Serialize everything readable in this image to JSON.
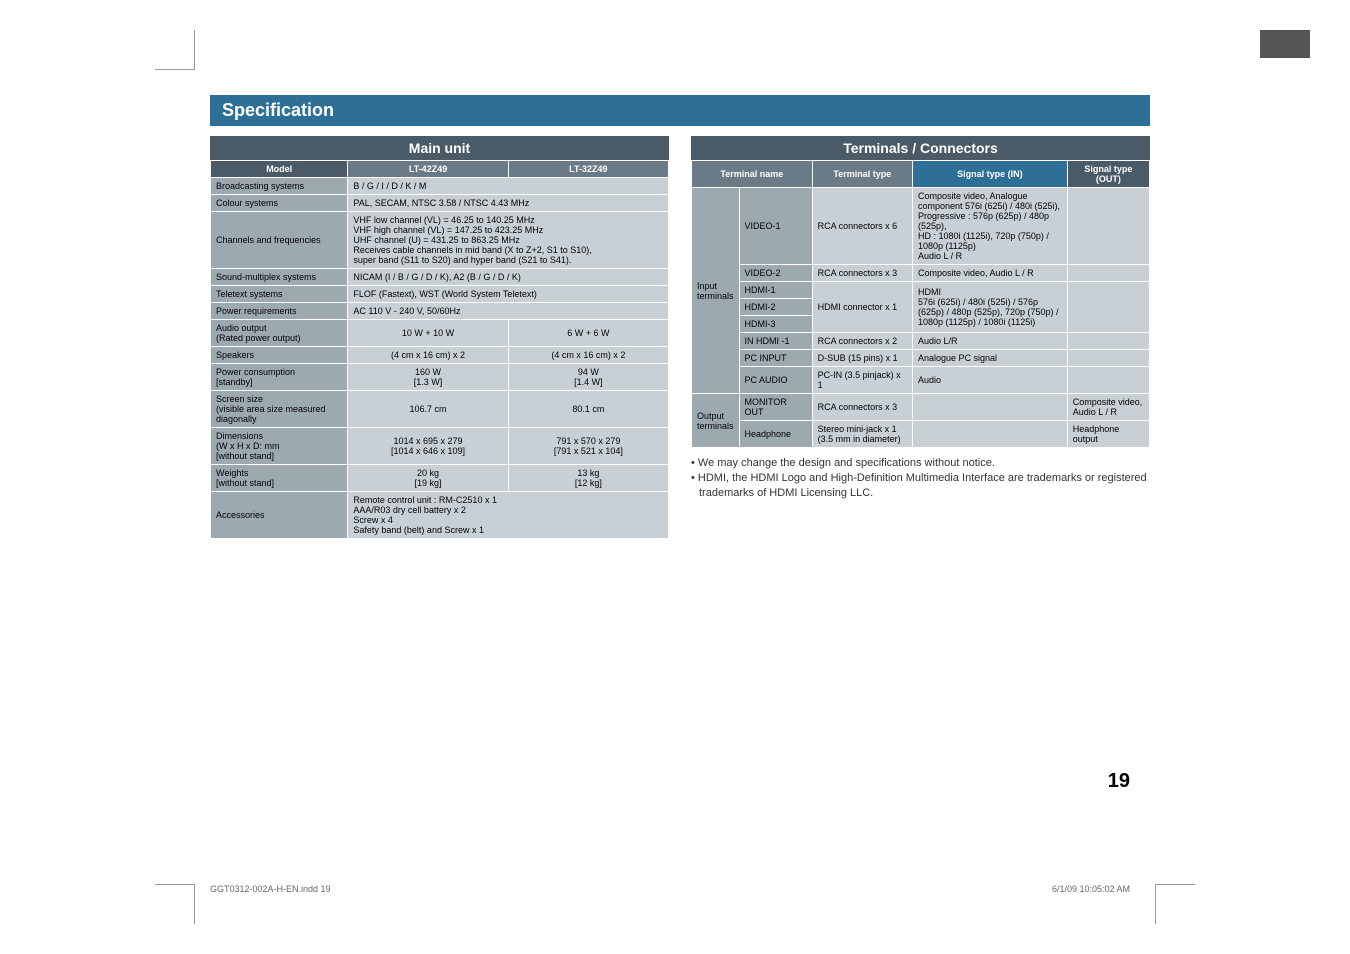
{
  "spec_header": "Specification",
  "main_unit": {
    "title": "Main unit",
    "headers": {
      "model": "Model",
      "m1": "LT-42Z49",
      "m2": "LT-32Z49"
    },
    "rows": [
      {
        "label": "Broadcasting systems",
        "span": "B / G / I / D / K / M"
      },
      {
        "label": "Colour systems",
        "span": "PAL, SECAM, NTSC 3.58 / NTSC 4.43 MHz"
      },
      {
        "label": "Channels and frequencies",
        "span": "VHF low channel (VL) = 46.25 to 140.25 MHz\nVHF high channel (VL) = 147.25 to 423.25 MHz\nUHF channel (U) = 431.25 to 863.25 MHz\nReceives cable channels in mid band (X to Z+2, S1 to S10),\nsuper band (S11 to S20) and hyper band (S21 to S41)."
      },
      {
        "label": "Sound-multiplex systems",
        "span": "NICAM (I / B / G / D / K), A2 (B / G / D / K)"
      },
      {
        "label": "Teletext systems",
        "span": "FLOF (Fastext), WST (World System Teletext)"
      },
      {
        "label": "Power requirements",
        "span": "AC 110 V - 240 V, 50/60Hz"
      },
      {
        "label": "Audio output\n(Rated power output)",
        "v1": "10 W + 10 W",
        "v2": "6 W + 6 W"
      },
      {
        "label": "Speakers",
        "v1": "(4 cm x 16 cm) x 2",
        "v2": "(4 cm x 16 cm) x 2"
      },
      {
        "label": "Power consumption\n[standby]",
        "v1": "160 W\n[1.3 W]",
        "v2": "94 W\n[1.4 W]"
      },
      {
        "label": "Screen size\n(visible area size measured diagonally",
        "v1": "106.7 cm",
        "v2": "80.1 cm"
      },
      {
        "label": "Dimensions\n(W x H x D: mm\n[without stand]",
        "v1": "1014 x 695 x 279\n[1014 x 646 x 109]",
        "v2": "791 x 570 x 279\n[791 x 521 x 104]"
      },
      {
        "label": "Weights\n[without stand]",
        "v1": "20 kg\n[19 kg]",
        "v2": "13 kg\n[12 kg]"
      },
      {
        "label": "Accessories",
        "span": "Remote control unit : RM-C2510 x 1\nAAA/R03 dry cell battery x 2\nScrew x 4\nSafety band (belt) and Screw x 1"
      }
    ]
  },
  "terminals": {
    "title": "Terminals / Connectors",
    "headers": {
      "name": "Terminal name",
      "type": "Terminal type",
      "in": "Signal type (IN)",
      "out": "Signal type (OUT)"
    },
    "groups": [
      {
        "group": "Input terminals",
        "rows": [
          {
            "name": "VIDEO-1",
            "type": "RCA connectors x 6",
            "in": "Composite video, Analogue component 576i (625i) / 480i (525i),\nProgressive : 576p (625p) / 480p (525p),\nHD : 1080i (1125i), 720p (750p) / 1080p (1125p)\nAudio L / R",
            "out": ""
          },
          {
            "name": "VIDEO-2",
            "type": "RCA connectors x 3",
            "in": "Composite video, Audio L / R",
            "out": ""
          },
          {
            "name": "HDMI-1",
            "typeSpan": "HDMI connector x 1",
            "inSpan": "HDMI\n576i (625i) / 480i (525i) / 576p (625p) / 480p (525p), 720p (750p) / 1080p (1125p) / 1080i (1125i)",
            "out": ""
          },
          {
            "name": "HDMI-2"
          },
          {
            "name": "HDMI-3"
          },
          {
            "name": "IN HDMI -1",
            "type": "RCA connectors x 2",
            "in": "Audio L/R",
            "out": ""
          },
          {
            "name": "PC INPUT",
            "type": "D-SUB (15 pins) x 1",
            "in": "Analogue PC signal",
            "out": ""
          },
          {
            "name": "PC AUDIO",
            "type": "PC-IN (3.5 pinjack) x 1",
            "in": "Audio",
            "out": ""
          }
        ]
      },
      {
        "group": "Output terminals",
        "rows": [
          {
            "name": "MONITOR OUT",
            "type": "RCA connectors x 3",
            "in": "",
            "out": "Composite video, Audio L / R"
          },
          {
            "name": "Headphone",
            "type": "Stereo mini-jack x 1 (3.5 mm in diameter)",
            "in": "",
            "out": "Headphone output"
          }
        ]
      }
    ]
  },
  "notes": [
    "• We may change the design and specifications without notice.",
    "• HDMI, the HDMI Logo and High-Definition Multimedia Interface are trademarks  or registered trademarks of HDMI Licensing LLC."
  ],
  "page_number": "19",
  "footer_left": "GGT0312-002A-H-EN.indd   19",
  "footer_right": "6/1/09   10:05:02 AM",
  "colors": {
    "spec_bar": "#2e6f97",
    "section_title": "#4a5a66",
    "hdr_med": "#6a7a86",
    "label": "#9da9b0",
    "val": "#c8d0d5"
  }
}
